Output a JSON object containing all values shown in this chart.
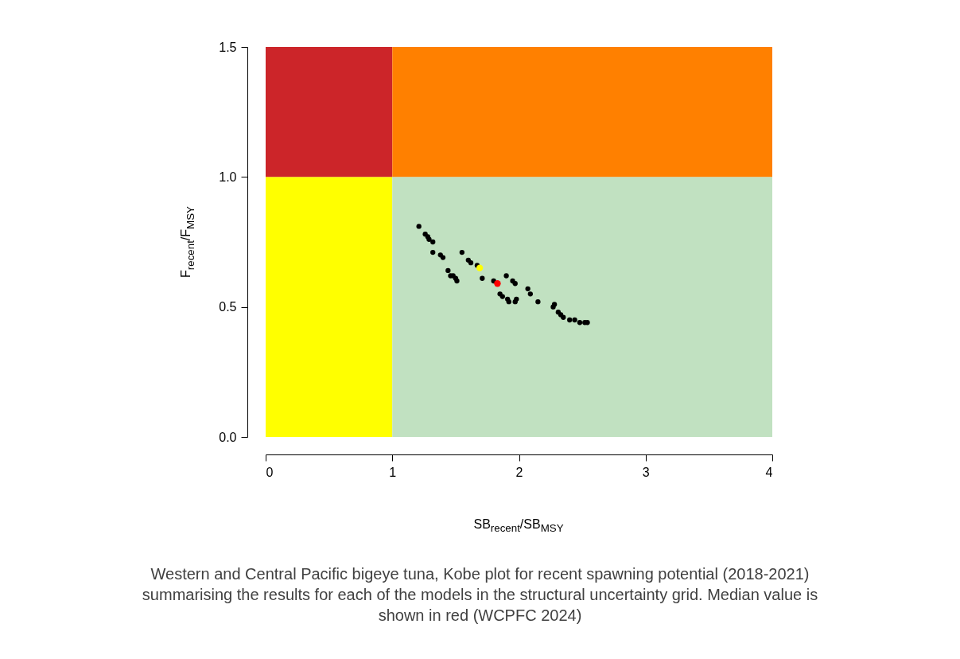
{
  "chart_data": {
    "type": "scatter",
    "xlabel": "SB$_{recent}$/SB$_{MSY}$",
    "ylabel": "F$_{recent}$/F$_{MSY}$",
    "annotations": [
      "Western and Central Pacific bigeye tuna, Kobe plot for recent spawning potential (2018-2021) summarising the results for each of the models in the structural uncertainty grid. Median value is shown in red (WCPFC 2024)"
    ],
    "xlim": [
      0,
      4
    ],
    "xticks": [
      0,
      1,
      2,
      3,
      4
    ],
    "ylim": [
      0,
      1.5
    ],
    "yticks": [
      {
        "value": 0,
        "label": "0.0"
      },
      {
        "value": 0.5,
        "label": "0.5"
      },
      {
        "value": 1,
        "label": "1.0"
      },
      {
        "value": 1.5,
        "label": "1.5"
      }
    ],
    "grid": false,
    "marker": "circle",
    "bands": [
      {
        "axis": "x",
        "from": 0,
        "to": 1,
        "color": "#ffff00"
      },
      {
        "axis": "x",
        "from": 1,
        "to": 4,
        "color": "#c1e1c1"
      },
      {
        "axis": "y",
        "from": 1,
        "to": 1.5,
        "color": "#cc2529"
      },
      {
        "axis": "y",
        "from": 1,
        "to": 1.5,
        "color": "#ff8000"
      }
    ],
    "series": [
      {
        "color": "#000000",
        "x": [
          1.21,
          1.26,
          1.28,
          1.29,
          1.32,
          1.32,
          1.38,
          1.4,
          1.44,
          1.46,
          1.48,
          1.5,
          1.51,
          1.55,
          1.6,
          1.62,
          1.67,
          1.71,
          1.8,
          1.9,
          1.95,
          1.97,
          1.85,
          1.87,
          1.91,
          1.92,
          1.97,
          1.98,
          2.07,
          2.09,
          2.15,
          2.27,
          2.28,
          2.31,
          2.33,
          2.35,
          2.4,
          2.44,
          2.48,
          2.52,
          2.54
        ],
        "values": [
          0.81,
          0.78,
          0.77,
          0.76,
          0.75,
          0.71,
          0.7,
          0.69,
          0.64,
          0.62,
          0.62,
          0.61,
          0.6,
          0.71,
          0.68,
          0.67,
          0.66,
          0.61,
          0.6,
          0.62,
          0.6,
          0.59,
          0.55,
          0.54,
          0.53,
          0.52,
          0.52,
          0.53,
          0.57,
          0.55,
          0.52,
          0.5,
          0.51,
          0.48,
          0.47,
          0.46,
          0.45,
          0.45,
          0.44,
          0.44,
          0.44
        ]
      },
      {
        "color": "#ffff00",
        "x": [
          1.69
        ],
        "values": [
          0.65
        ]
      },
      {
        "color": "#ff0000",
        "x": [
          1.83
        ],
        "values": [
          0.59
        ]
      }
    ]
  }
}
